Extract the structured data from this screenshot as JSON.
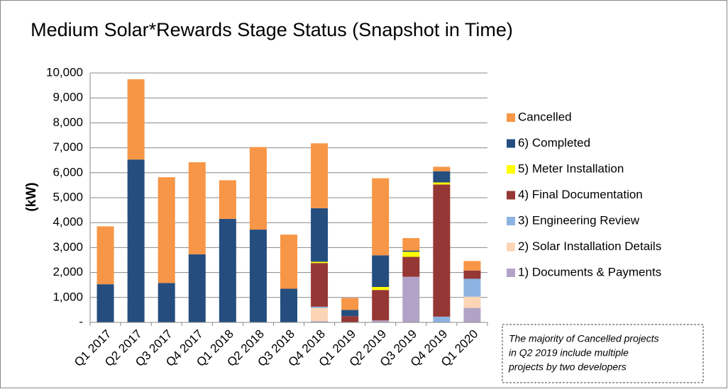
{
  "chart_data": {
    "type": "stacked_bar",
    "title": "Medium Solar*Rewards Stage Status (Snapshot in Time)",
    "y_label": "(kW)",
    "categories": [
      "Q1 2017",
      "Q2 2017",
      "Q3 2017",
      "Q4 2017",
      "Q1 2018",
      "Q2 2018",
      "Q3 2018",
      "Q4 2018",
      "Q1 2019",
      "Q2 2019",
      "Q3 2019",
      "Q4 2019",
      "Q1 2020"
    ],
    "series": [
      {
        "name": "1) Documents & Payments",
        "color": "#b3a2c7",
        "values": [
          0,
          0,
          0,
          0,
          0,
          0,
          0,
          50,
          0,
          80,
          1830,
          0,
          580
        ]
      },
      {
        "name": "2) Solar Installation Details",
        "color": "#fbd5b5",
        "values": [
          0,
          0,
          0,
          0,
          0,
          0,
          0,
          530,
          0,
          0,
          0,
          0,
          450
        ]
      },
      {
        "name": "3) Engineering Review",
        "color": "#8db3e2",
        "values": [
          0,
          0,
          0,
          0,
          0,
          0,
          0,
          50,
          0,
          0,
          0,
          230,
          720
        ]
      },
      {
        "name": "4) Final Documentation",
        "color": "#953735",
        "values": [
          0,
          0,
          0,
          0,
          0,
          0,
          0,
          1750,
          250,
          1220,
          800,
          5300,
          330
        ]
      },
      {
        "name": "5) Meter Installation",
        "color": "#ffff00",
        "values": [
          0,
          0,
          0,
          0,
          0,
          0,
          0,
          50,
          0,
          120,
          200,
          80,
          0
        ]
      },
      {
        "name": "6) Completed",
        "color": "#254e7f",
        "values": [
          1530,
          6530,
          1580,
          2730,
          4150,
          3720,
          1350,
          2150,
          250,
          1270,
          50,
          450,
          0
        ]
      },
      {
        "name": "Cancelled",
        "color": "#f79646",
        "values": [
          2320,
          3220,
          4240,
          3690,
          1550,
          3310,
          2170,
          2600,
          480,
          3090,
          500,
          180,
          380
        ]
      }
    ],
    "ylim": [
      0,
      10000
    ],
    "yticks": [
      {
        "value": 0,
        "label": "-"
      },
      {
        "value": 1000,
        "label": "1,000"
      },
      {
        "value": 2000,
        "label": "2,000"
      },
      {
        "value": 3000,
        "label": "3,000"
      },
      {
        "value": 4000,
        "label": "4,000"
      },
      {
        "value": 5000,
        "label": "5,000"
      },
      {
        "value": 6000,
        "label": "6,000"
      },
      {
        "value": 7000,
        "label": "7,000"
      },
      {
        "value": 8000,
        "label": "8,000"
      },
      {
        "value": 9000,
        "label": "9,000"
      },
      {
        "value": 10000,
        "label": "10,000"
      }
    ],
    "grid": true,
    "legend": "right",
    "annotation": [
      "The majority of Cancelled projects",
      "in Q2 2019 include multiple",
      "projects by two developers"
    ]
  }
}
